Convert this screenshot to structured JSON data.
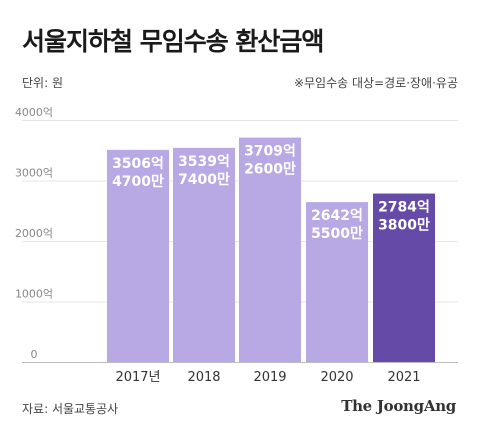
{
  "title": "서울지하철 무임수송 환산금액",
  "unit": "단위: 원",
  "note": "※무임수송 대상=경로·장애·유공",
  "source": "자료: 서울교통공사",
  "brand": "The JoongAng",
  "colors": {
    "bar": "#b8a8e4",
    "highlight": "#664aa8",
    "grid": "#e6e6e6",
    "tick": "#888888",
    "label": "#ffffff"
  },
  "chart_data": {
    "type": "bar",
    "categories": [
      "2017년",
      "2018",
      "2019",
      "2020",
      "2021"
    ],
    "values": [
      3506.47,
      3539.74,
      3709.26,
      2642.55,
      2784.38
    ],
    "value_labels": [
      [
        "3506억",
        "4700만"
      ],
      [
        "3539억",
        "7400만"
      ],
      [
        "3709억",
        "2600만"
      ],
      [
        "2642억",
        "5500만"
      ],
      [
        "2784억",
        "3800만"
      ]
    ],
    "y_ticks": [
      0,
      1000,
      2000,
      3000,
      4000
    ],
    "y_tick_labels": [
      "0",
      "1000억",
      "2000억",
      "3000억",
      "4000억"
    ],
    "ylim": [
      0,
      4000
    ],
    "highlight_index": 4,
    "grid": true
  }
}
